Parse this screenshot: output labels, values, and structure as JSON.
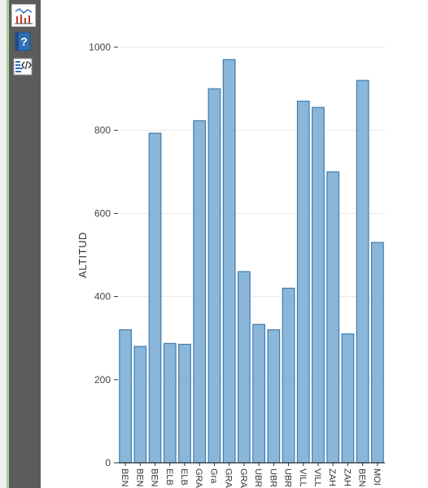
{
  "toolbar": {
    "tools": [
      {
        "icon": "line-bar-chart-icon",
        "active": true
      },
      {
        "icon": "help-icon",
        "active": false
      },
      {
        "icon": "code-view-icon",
        "active": false
      }
    ]
  },
  "colors": {
    "bar_fill": "#8ab7d9",
    "bar_stroke": "#3f7bb0",
    "grid": "#e8e8e8",
    "axis": "#333333"
  },
  "chart_data": {
    "type": "bar",
    "title": "",
    "xlabel": "",
    "ylabel": "ALTITUD",
    "ylim": [
      0,
      1000
    ],
    "yticks": [
      0,
      200,
      400,
      600,
      800,
      1000
    ],
    "grid": true,
    "categories": [
      "BEN",
      "BEN",
      "BEN",
      "ELB",
      "ELB",
      "GRA",
      "Gra",
      "GRA",
      "GRA",
      "UBR",
      "UBR",
      "UBR",
      "VILL",
      "VILL",
      "ZAH",
      "ZAH",
      "BEN",
      "MOI"
    ],
    "values": [
      320,
      280,
      793,
      287,
      285,
      823,
      900,
      970,
      460,
      333,
      320,
      420,
      870,
      855,
      700,
      310,
      920,
      530
    ]
  }
}
